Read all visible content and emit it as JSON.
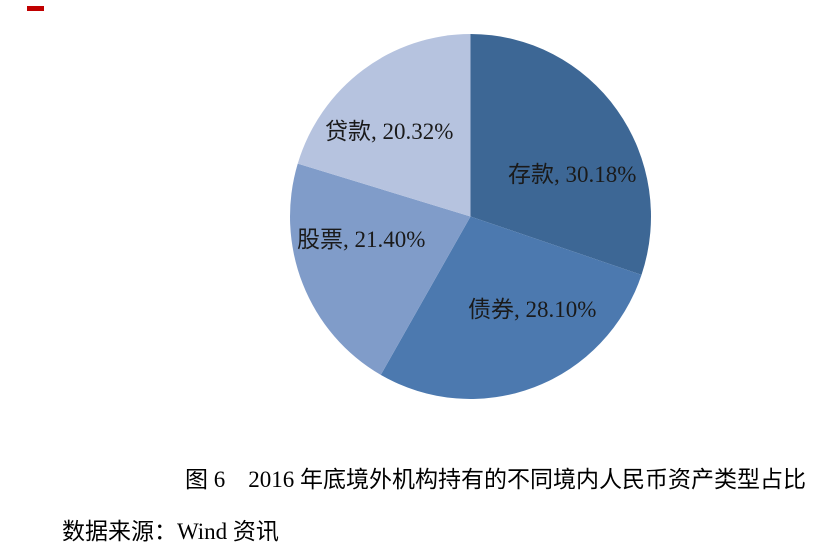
{
  "caption": {
    "text": "图 6　2016 年底境外机构持有的不同境内人民币资产类型占比"
  },
  "source": {
    "text": "数据来源：Wind 资讯"
  },
  "annotation": {
    "name": "red-dash",
    "color": "#C00000"
  },
  "chart_data": {
    "type": "pie",
    "title": "图 6　2016 年底境外机构持有的不同境内人民币资产类型占比",
    "source": "数据来源：Wind 资讯",
    "legend_position": "none",
    "labels_on_slices": true,
    "label_format": "category, percent",
    "start_angle_deg": 0,
    "direction": "clockwise",
    "categories": [
      "存款",
      "债券",
      "股票",
      "贷款"
    ],
    "values": [
      30.18,
      28.1,
      21.4,
      20.32
    ],
    "slices": [
      {
        "label": "存款",
        "value": 30.18,
        "percent_text": "30.18%",
        "label_text": "存款, 30.18%",
        "color": "#3D6795"
      },
      {
        "label": "债券",
        "value": 28.1,
        "percent_text": "28.10%",
        "label_text": "债券, 28.10%",
        "color": "#4C79AF"
      },
      {
        "label": "股票",
        "value": 21.4,
        "percent_text": "21.40%",
        "label_text": "股票, 21.40%",
        "color": "#809CC9"
      },
      {
        "label": "贷款",
        "value": 20.32,
        "percent_text": "20.32%",
        "label_text": "贷款, 20.32%",
        "color": "#B6C3DF"
      }
    ]
  }
}
